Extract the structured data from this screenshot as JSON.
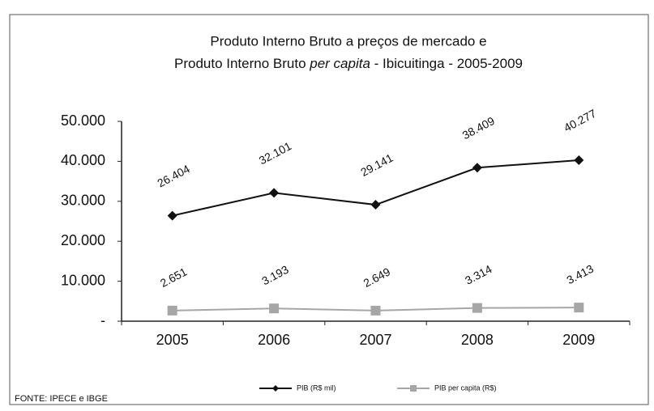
{
  "chart_data": {
    "type": "line",
    "title": [
      "Produto Interno Bruto a preços de mercado  e",
      "Produto Interno Bruto ",
      "per capita",
      " -  Ibicuitinga - 2005-2009"
    ],
    "categories": [
      "2005",
      "2006",
      "2007",
      "2008",
      "2009"
    ],
    "series": [
      {
        "name": "PIB (R$ mil)",
        "color": "#111111",
        "marker": "diamond",
        "values": [
          26404,
          32101,
          29141,
          38409,
          40277
        ],
        "value_labels": [
          "26.404",
          "32.101",
          "29.141",
          "38.409",
          "40.277"
        ]
      },
      {
        "name": "PIB per capita (R$)",
        "color": "#a6a6a6",
        "marker": "square",
        "values": [
          2651,
          3193,
          2649,
          3314,
          3413
        ],
        "value_labels": [
          "2.651",
          "3.193",
          "2.649",
          "3.314",
          "3.413"
        ]
      }
    ],
    "ylim": [
      0,
      50000
    ],
    "yticks": [
      {
        "value": 0,
        "label": "-"
      },
      {
        "value": 10000,
        "label": "10.000"
      },
      {
        "value": 20000,
        "label": "20.000"
      },
      {
        "value": 30000,
        "label": "30.000"
      },
      {
        "value": 40000,
        "label": "40.000"
      },
      {
        "value": 50000,
        "label": "50.000"
      }
    ],
    "grid": false,
    "legend": "bottom",
    "source": "FONTE: IPECE e IBGE"
  }
}
